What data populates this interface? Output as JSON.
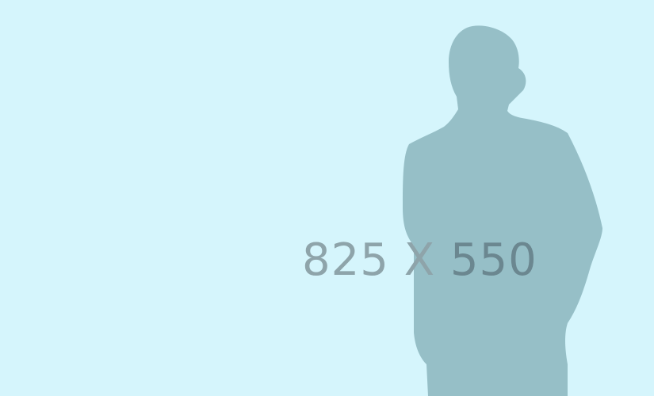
{
  "placeholder": {
    "label_left": "825 X",
    "label_right": "550",
    "background_color": "#d5f5fc",
    "silhouette_color": "#96bfc7",
    "text_color": "#8ea4aa",
    "text_on_figure_color": "#6b8790",
    "silhouette": "person-silhouette-icon"
  }
}
